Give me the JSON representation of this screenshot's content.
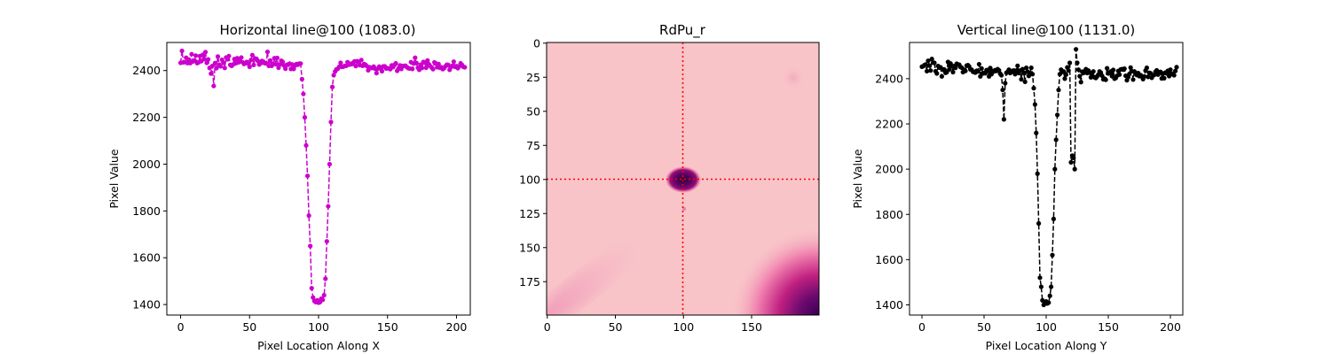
{
  "chart_data": [
    {
      "type": "line",
      "title": "Horizontal line@100 (1083.0)",
      "xlabel": "Pixel Location Along X",
      "ylabel": "Pixel Value",
      "xlim": [
        -10,
        210
      ],
      "ylim": [
        1355,
        2520
      ],
      "xticks": [
        0,
        50,
        100,
        150,
        200
      ],
      "yticks": [
        1400,
        1600,
        1800,
        2000,
        2200,
        2400
      ],
      "color": "#cc00cc",
      "line_style": "dashed",
      "marker": "circle",
      "grid": false,
      "x_start": 0,
      "x_step": 1,
      "values": [
        2433,
        2484,
        2435,
        2436,
        2455,
        2432,
        2447,
        2432,
        2470,
        2439,
        2443,
        2464,
        2432,
        2435,
        2462,
        2440,
        2467,
        2449,
        2479,
        2433,
        2448,
        2411,
        2387,
        2420,
        2334,
        2432,
        2410,
        2460,
        2425,
        2418,
        2446,
        2434,
        2411,
        2456,
        2448,
        2462,
        2424,
        2420,
        2426,
        2449,
        2431,
        2453,
        2435,
        2447,
        2456,
        2435,
        2428,
        2432,
        2437,
        2430,
        2416,
        2445,
        2466,
        2424,
        2452,
        2450,
        2441,
        2426,
        2431,
        2441,
        2438,
        2431,
        2431,
        2480,
        2420,
        2443,
        2420,
        2428,
        2453,
        2427,
        2454,
        2412,
        2426,
        2442,
        2437,
        2421,
        2408,
        2425,
        2425,
        2430,
        2407,
        2426,
        2407,
        2422,
        2428,
        2425,
        2430,
        2430,
        2363,
        2300,
        2200,
        2080,
        1950,
        1780,
        1650,
        1470,
        1430,
        1415,
        1410,
        1418,
        1408,
        1410,
        1425,
        1420,
        1440,
        1510,
        1670,
        1820,
        2000,
        2180,
        2330,
        2380,
        2396,
        2405,
        2408,
        2416,
        2433,
        2416,
        2417,
        2420,
        2420,
        2436,
        2425,
        2429,
        2427,
        2433,
        2439,
        2419,
        2440,
        2435,
        2423,
        2445,
        2420,
        2428,
        2425,
        2419,
        2401,
        2414,
        2411,
        2411,
        2417,
        2408,
        2389,
        2408,
        2417,
        2410,
        2397,
        2418,
        2418,
        2409,
        2410,
        2409,
        2406,
        2422,
        2415,
        2424,
        2431,
        2399,
        2409,
        2422,
        2407,
        2420,
        2420,
        2421,
        2415,
        2410,
        2409,
        2436,
        2407,
        2430,
        2455,
        2432,
        2412,
        2403,
        2425,
        2411,
        2437,
        2434,
        2412,
        2443,
        2427,
        2419,
        2413,
        2406,
        2435,
        2431,
        2414,
        2428,
        2412,
        2414,
        2406,
        2410,
        2418,
        2425,
        2424,
        2403,
        2415,
        2420,
        2438,
        2416,
        2419,
        2410,
        2418,
        2431,
        2424,
        2416,
        2414
      ]
    },
    {
      "type": "heatmap",
      "title": "RdPu_r",
      "colormap": "RdPu_r",
      "xlim": [
        0,
        199
      ],
      "ylim": [
        199,
        0
      ],
      "xticks": [
        0,
        50,
        100,
        150
      ],
      "yticks": [
        0,
        25,
        50,
        75,
        100,
        125,
        150,
        175
      ],
      "crosshair": {
        "x": 100,
        "y": 100,
        "color": "#ff0000",
        "style": "dotted"
      },
      "features": [
        {
          "kind": "dark-spot",
          "x": 100,
          "y": 100
        },
        {
          "kind": "light-blob",
          "x": 185,
          "y": 25
        },
        {
          "kind": "light-streak",
          "x": 30,
          "y": 180
        },
        {
          "kind": "dark-corner",
          "x": 195,
          "y": 195
        }
      ]
    },
    {
      "type": "line",
      "title": "Vertical line@100 (1131.0)",
      "xlabel": "Pixel Location Along Y",
      "ylabel": "Pixel Value",
      "xlim": [
        -10,
        210
      ],
      "ylim": [
        1355,
        2560
      ],
      "xticks": [
        0,
        50,
        100,
        150,
        200
      ],
      "yticks": [
        1400,
        1600,
        1800,
        2000,
        2200,
        2400
      ],
      "color": "#000000",
      "line_style": "dashed",
      "marker": "circle",
      "grid": false,
      "x_start": 0,
      "x_step": 1,
      "values": [
        2453,
        2455,
        2460,
        2463,
        2433,
        2479,
        2458,
        2436,
        2487,
        2471,
        2470,
        2433,
        2423,
        2456,
        2449,
        2450,
        2410,
        2441,
        2441,
        2426,
        2429,
        2474,
        2441,
        2467,
        2457,
        2429,
        2456,
        2448,
        2466,
        2463,
        2462,
        2452,
        2449,
        2429,
        2440,
        2434,
        2458,
        2460,
        2454,
        2441,
        2440,
        2431,
        2429,
        2427,
        2435,
        2432,
        2464,
        2410,
        2445,
        2423,
        2425,
        2424,
        2438,
        2438,
        2410,
        2447,
        2420,
        2434,
        2432,
        2438,
        2434,
        2442,
        2437,
        2422,
        2415,
        2350,
        2220,
        2380,
        2426,
        2430,
        2440,
        2425,
        2430,
        2435,
        2436,
        2420,
        2436,
        2457,
        2425,
        2436,
        2397,
        2442,
        2426,
        2386,
        2448,
        2431,
        2412,
        2425,
        2448,
        2420,
        2358,
        2286,
        2160,
        1980,
        1760,
        1520,
        1480,
        1420,
        1400,
        1405,
        1415,
        1406,
        1410,
        1440,
        1480,
        1620,
        1780,
        2000,
        2130,
        2240,
        2350,
        2420,
        2440,
        2430,
        2432,
        2400,
        2418,
        2450,
        2436,
        2470,
        2030,
        2060,
        2050,
        2000,
        2530,
        2470,
        2440,
        2411,
        2385,
        2431,
        2425,
        2433,
        2442,
        2425,
        2436,
        2427,
        2406,
        2416,
        2432,
        2406,
        2403,
        2410,
        2418,
        2432,
        2427,
        2413,
        2397,
        2400,
        2395,
        2446,
        2423,
        2427,
        2432,
        2411,
        2439,
        2400,
        2403,
        2413,
        2434,
        2418,
        2441,
        2442,
        2440,
        2444,
        2413,
        2393,
        2407,
        2421,
        2449,
        2433,
        2396,
        2432,
        2424,
        2416,
        2425,
        2411,
        2416,
        2409,
        2398,
        2410,
        2436,
        2448,
        2408,
        2426,
        2424,
        2404,
        2414,
        2417,
        2430,
        2437,
        2418,
        2428,
        2430,
        2401,
        2423,
        2402,
        2427,
        2423,
        2435,
        2411,
        2440,
        2420,
        2422,
        2415,
        2434,
        2451
      ]
    }
  ]
}
